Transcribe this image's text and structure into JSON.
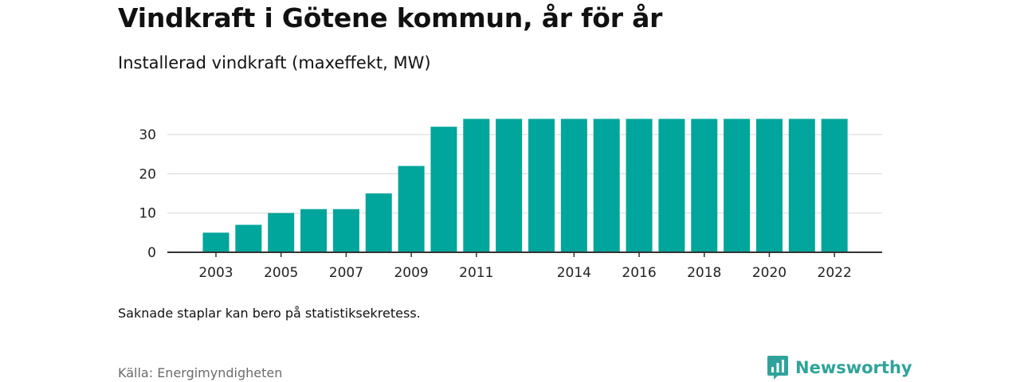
{
  "title": "Vindkraft i Götene kommun, år för år",
  "subtitle": "Installerad vindkraft (maxeffekt, MW)",
  "footnote": "Saknade staplar kan bero på statistiksekretess.",
  "source": "Källa: Energimyndigheten",
  "brand": {
    "name": "Newsworthy",
    "icon": "newsworthy-logo-icon",
    "color": "#2fa39b"
  },
  "chart_data": {
    "type": "bar",
    "categories": [
      "2003",
      "2004",
      "2005",
      "2006",
      "2007",
      "2008",
      "2009",
      "2010",
      "2011",
      "2012",
      "2013",
      "2014",
      "2015",
      "2016",
      "2017",
      "2018",
      "2019",
      "2020",
      "2021",
      "2022"
    ],
    "values": [
      5,
      7,
      10,
      11,
      11,
      15,
      22,
      32,
      34,
      34,
      34,
      34,
      34,
      34,
      34,
      34,
      34,
      34,
      34,
      34
    ],
    "x_tick_labels": [
      "2003",
      "2005",
      "2007",
      "2009",
      "2011",
      "2014",
      "2016",
      "2018",
      "2020",
      "2022"
    ],
    "y_ticks": [
      0,
      10,
      20,
      30
    ],
    "ylim": [
      0,
      34
    ],
    "grid": true,
    "bar_color": "#00a59b",
    "xlabel": "",
    "ylabel": ""
  }
}
